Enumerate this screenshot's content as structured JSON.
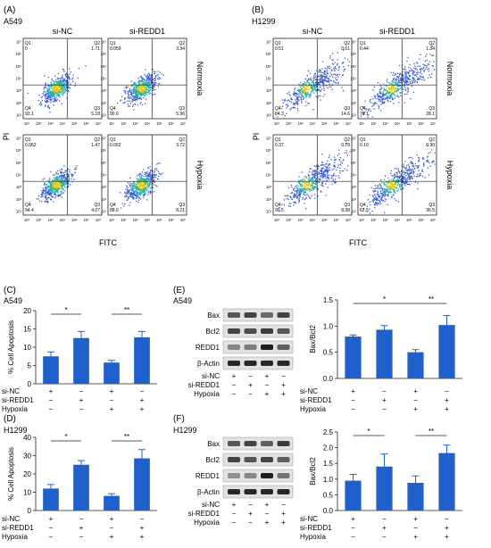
{
  "figure_labels": {
    "a": "(A)",
    "b": "(B)",
    "c": "(C)",
    "d": "(D)",
    "e": "(E)",
    "f": "(F)"
  },
  "flow_a": {
    "cell_line": "A549",
    "col_labels": [
      "si-NC",
      "si-REDD1"
    ],
    "row_labels": [
      "Normoxia",
      "Hypoxia"
    ],
    "ylabel": "PI",
    "xlabel": "FITC",
    "panels": [
      {
        "q1": "0",
        "q2": "1.71",
        "q3": "5.18",
        "q4": "93.1"
      },
      {
        "q1": "0.059",
        "q2": "3.34",
        "q3": "5.96",
        "q4": "90.6"
      },
      {
        "q1": "0.062",
        "q2": "1.47",
        "q3": "4.07",
        "q4": "94.4"
      },
      {
        "q1": "0.062",
        "q2": "3.72",
        "q3": "8.21",
        "q4": "88.0"
      }
    ]
  },
  "flow_b": {
    "cell_line": "H1299",
    "col_labels": [
      "si-NC",
      "si-REDD1"
    ],
    "row_labels": [
      "Normoxia",
      "Hypoxia"
    ],
    "ylabel": "PI",
    "xlabel": "FITC",
    "panels": [
      {
        "q1": "0.51",
        "q2": "0.61",
        "q3": "14.6",
        "q4": "84.3"
      },
      {
        "q1": "0.44",
        "q2": "1.34",
        "q3": "28.1",
        "q4": "70.1"
      },
      {
        "q1": "0.37",
        "q2": "0.78",
        "q3": "8.38",
        "q4": "90.5"
      },
      {
        "q1": "0.10",
        "q2": "0.90",
        "q3": "36.5",
        "q4": "62.5"
      }
    ]
  },
  "quadrant_names": {
    "q1": "Q1",
    "q2": "Q2",
    "q3": "Q3",
    "q4": "Q4"
  },
  "axis_ticks": [
    "10¹",
    "10²",
    "10³",
    "10⁴",
    "10⁵",
    "10⁶",
    "10⁷"
  ],
  "treatment_labels": [
    "si-NC",
    "si-REDD1",
    "Hypoxia"
  ],
  "treatment_signs": [
    [
      "+",
      "−",
      "+",
      "−"
    ],
    [
      "−",
      "+",
      "−",
      "+"
    ],
    [
      "−",
      "−",
      "+",
      "+"
    ]
  ],
  "blot": {
    "bands": [
      "Bax",
      "Bcl2",
      "REDD1",
      "β-Actin"
    ]
  },
  "colors": {
    "bar": "#2060cc",
    "flow_dot": "#3b5bc6"
  },
  "chart_data": [
    {
      "id": "C",
      "type": "bar",
      "cell_line": "A549",
      "ylabel": "% Cell Apoptosis",
      "ylim": [
        0,
        20
      ],
      "yticks": [
        0,
        5,
        10,
        15,
        20
      ],
      "values": [
        7.5,
        12.5,
        5.8,
        12.7
      ],
      "errors": [
        1.2,
        1.8,
        0.6,
        1.6
      ],
      "significance": [
        {
          "from": 0,
          "to": 1,
          "label": "*"
        },
        {
          "from": 2,
          "to": 3,
          "label": "**"
        }
      ]
    },
    {
      "id": "D",
      "type": "bar",
      "cell_line": "H1299",
      "ylabel": "% Cell Apoptosis",
      "ylim": [
        0,
        40
      ],
      "yticks": [
        0,
        10,
        20,
        30,
        40
      ],
      "values": [
        12,
        25,
        8,
        28.5
      ],
      "errors": [
        2.2,
        2.3,
        1.2,
        4.8
      ],
      "significance": [
        {
          "from": 0,
          "to": 1,
          "label": "*"
        },
        {
          "from": 2,
          "to": 3,
          "label": "**"
        }
      ]
    },
    {
      "id": "E",
      "type": "bar",
      "cell_line": "A549",
      "ylabel": "Bax/Bcl2",
      "ylim": [
        0,
        1.5
      ],
      "yticks": [
        0.0,
        0.5,
        1.0,
        1.5
      ],
      "values": [
        0.8,
        0.93,
        0.5,
        1.02
      ],
      "errors": [
        0.03,
        0.08,
        0.05,
        0.18
      ],
      "significance": [
        {
          "from": 0,
          "to": 2,
          "label": "*"
        },
        {
          "from": 2,
          "to": 3,
          "label": "**"
        }
      ]
    },
    {
      "id": "F",
      "type": "bar",
      "cell_line": "H1299",
      "ylabel": "Bax/Bcl2",
      "ylim": [
        0,
        2.5
      ],
      "yticks": [
        0.0,
        0.5,
        1.0,
        1.5,
        2.0,
        2.5
      ],
      "values": [
        0.95,
        1.4,
        0.88,
        1.83
      ],
      "errors": [
        0.2,
        0.4,
        0.22,
        0.25
      ],
      "significance": [
        {
          "from": 0,
          "to": 1,
          "label": "*"
        },
        {
          "from": 2,
          "to": 3,
          "label": "**"
        }
      ]
    }
  ]
}
